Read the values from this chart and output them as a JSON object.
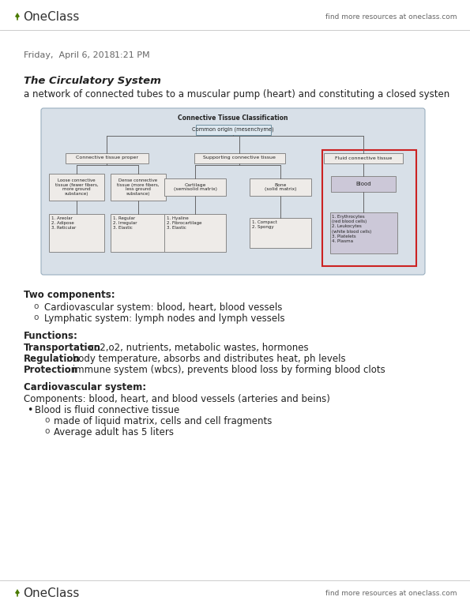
{
  "page_bg": "#ffffff",
  "header_right": "find more resources at oneclass.com",
  "date_line_1": "Friday,  April 6, 2018",
  "date_line_2": "1:21 PM",
  "section_title": "The Circulatory System",
  "section_desc": "a network of connected tubes to a muscular pump (heart) and constituting a closed systen",
  "diagram_title": "Connective Tissue Classification",
  "diagram_bg": "#d8e0e8",
  "box_bg": "#eeebe8",
  "blood_box_bg": "#ccc8d8",
  "two_components_header": "Two components:",
  "two_components": [
    "Cardiovascular system: blood, heart, blood vessels",
    "Lymphatic system: lymph nodes and lymph vessels"
  ],
  "functions_header": "Functions:",
  "functions_lines": [
    [
      "Transportation",
      ": co2,o2, nutrients, metabolic wastes, hormones"
    ],
    [
      "Regulation",
      ": body temperature, absorbs and distributes heat, ph levels"
    ],
    [
      "Protection",
      ": immune system (wbcs), prevents blood loss by forming blood clots"
    ]
  ],
  "cardio_header": "Cardiovascular system:",
  "cardio_comp": "Components: blood, heart, and blood vessels (arteries and beins)",
  "blood_line": "Blood is fluid connective tissue",
  "blood_sub": [
    "made of liquid matrix, cells and cell fragments",
    "Average adult has 5 liters"
  ],
  "oneclass_green": "#4a7a00",
  "line_color": "#888888",
  "text_dark": "#222222",
  "text_mid": "#444444",
  "text_light": "#666666"
}
